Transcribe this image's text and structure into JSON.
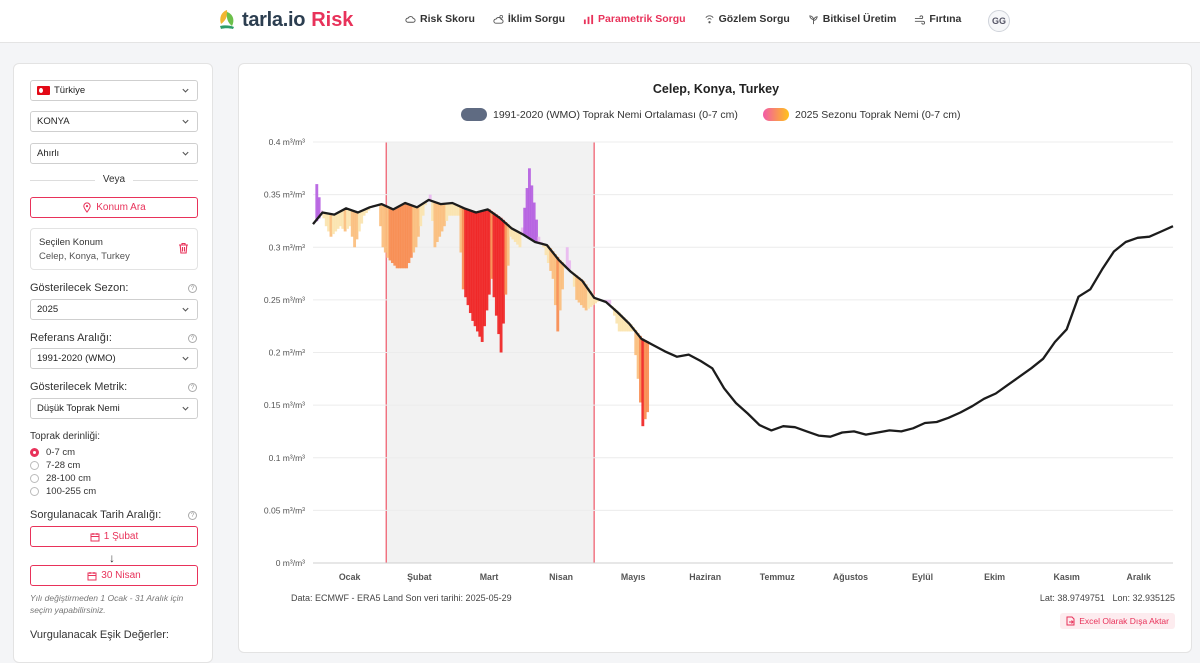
{
  "header": {
    "logo_main": "tarla.io",
    "logo_accent": "Risk",
    "nav": [
      {
        "label": "Risk Skoru",
        "icon": "cloud-icon",
        "active": false
      },
      {
        "label": "İklim Sorgu",
        "icon": "cloud-sun-icon",
        "active": false
      },
      {
        "label": "Parametrik Sorgu",
        "icon": "bar-chart-icon",
        "active": true
      },
      {
        "label": "Gözlem Sorgu",
        "icon": "sensor-icon",
        "active": false
      },
      {
        "label": "Bitkisel Üretim",
        "icon": "plant-icon",
        "active": false
      },
      {
        "label": "Fırtına",
        "icon": "wind-icon",
        "active": false
      }
    ],
    "user_initials": "GG"
  },
  "sidebar": {
    "country": "Türkiye",
    "province": "KONYA",
    "district": "Ahırlı",
    "or_label": "Veya",
    "location_search": "Konum Ara",
    "selected_location_title": "Seçilen Konum",
    "selected_location_value": "Celep, Konya, Turkey",
    "season_label": "Gösterilecek Sezon:",
    "season_value": "2025",
    "reference_label": "Referans Aralığı:",
    "reference_value": "1991-2020 (WMO)",
    "metric_label": "Gösterilecek Metrik:",
    "metric_value": "Düşük Toprak Nemi",
    "depth_label": "Toprak derinliği:",
    "depth_options": [
      "0-7 cm",
      "7-28 cm",
      "28-100 cm",
      "100-255 cm"
    ],
    "depth_selected": 0,
    "date_range_label": "Sorgulanacak Tarih Aralığı:",
    "date_start": "1 Şubat",
    "date_arrow": "↓",
    "date_end": "30 Nisan",
    "note": "Yılı değiştirmeden 1 Ocak - 31 Aralık için seçim yapabilirsiniz.",
    "threshold_label": "Vurgulanacak Eşik Değerler:"
  },
  "chart": {
    "footer_source": "Data: ECMWF - ERA5 Land  Son veri tarihi: 2025-05-29",
    "lat": "Lat: 38.9749751",
    "lon": "Lon: 32.935125",
    "export_label": "Excel Olarak Dışa Aktar"
  },
  "chart_data": {
    "type": "line",
    "title": "Celep, Konya, Turkey",
    "legend": [
      {
        "name": "1991-2020 (WMO) Toprak Nemi Ortalaması (0-7 cm)",
        "color": "#5f6b82"
      },
      {
        "name": "2025 Sezonu Toprak Nemi (0-7 cm)",
        "color": "#f4a63a"
      }
    ],
    "ylim": [
      0,
      0.4
    ],
    "yticks": [
      0,
      0.05,
      0.1,
      0.15,
      0.2,
      0.25,
      0.3,
      0.35,
      0.4
    ],
    "ytick_labels": [
      "0 m³/m³",
      "0.05 m³/m³",
      "0.1 m³/m³",
      "0.15 m³/m³",
      "0.2 m³/m³",
      "0.25 m³/m³",
      "0.3 m³/m³",
      "0.35 m³/m³",
      "0.4 m³/m³"
    ],
    "x_range_days": [
      1,
      365
    ],
    "months": [
      "Ocak",
      "Şubat",
      "Mart",
      "Nisan",
      "Mayıs",
      "Haziran",
      "Temmuz",
      "Ağustos",
      "Eylül",
      "Ekim",
      "Kasım",
      "Aralık"
    ],
    "highlight_range_days": [
      32,
      120
    ],
    "series": [
      {
        "name": "1991-2020 (WMO) Toprak Nemi Ortalaması (0-7 cm)",
        "x": [
          1,
          5,
          10,
          15,
          20,
          25,
          30,
          35,
          40,
          45,
          50,
          55,
          60,
          65,
          70,
          75,
          80,
          85,
          90,
          95,
          100,
          105,
          110,
          115,
          120,
          125,
          130,
          135,
          140,
          145,
          150,
          155,
          160,
          165,
          170,
          175,
          180,
          185,
          190,
          195,
          200,
          205,
          210,
          215,
          220,
          225,
          230,
          235,
          240,
          245,
          250,
          255,
          260,
          265,
          270,
          275,
          280,
          285,
          290,
          295,
          300,
          305,
          310,
          315,
          320,
          325,
          330,
          335,
          340,
          345,
          350,
          355,
          360,
          365
        ],
        "y": [
          0.322,
          0.333,
          0.331,
          0.337,
          0.333,
          0.338,
          0.341,
          0.336,
          0.342,
          0.338,
          0.345,
          0.341,
          0.342,
          0.337,
          0.333,
          0.336,
          0.328,
          0.318,
          0.312,
          0.305,
          0.302,
          0.288,
          0.277,
          0.268,
          0.252,
          0.248,
          0.238,
          0.227,
          0.213,
          0.207,
          0.201,
          0.196,
          0.198,
          0.192,
          0.185,
          0.166,
          0.152,
          0.142,
          0.131,
          0.126,
          0.13,
          0.129,
          0.125,
          0.121,
          0.12,
          0.124,
          0.125,
          0.122,
          0.124,
          0.126,
          0.125,
          0.128,
          0.133,
          0.134,
          0.138,
          0.143,
          0.149,
          0.156,
          0.161,
          0.169,
          0.177,
          0.185,
          0.194,
          0.21,
          0.222,
          0.253,
          0.26,
          0.279,
          0.296,
          0.305,
          0.309,
          0.31,
          0.315,
          0.32
        ]
      },
      {
        "name": "2025 Sezonu Toprak Nemi (0-7 cm)",
        "x": [
          2,
          4,
          6,
          8,
          12,
          14,
          16,
          18,
          22,
          26,
          28,
          30,
          32,
          36,
          40,
          44,
          48,
          50,
          52,
          56,
          58,
          62,
          64,
          68,
          72,
          76,
          80,
          84,
          88,
          92,
          96,
          98,
          102,
          104,
          108,
          112,
          116,
          122,
          126,
          130,
          136,
          140,
          143
        ],
        "y": [
          0.36,
          0.335,
          0.32,
          0.31,
          0.32,
          0.315,
          0.32,
          0.3,
          0.33,
          0.34,
          0.34,
          0.3,
          0.29,
          0.28,
          0.28,
          0.3,
          0.34,
          0.35,
          0.3,
          0.32,
          0.33,
          0.33,
          0.26,
          0.23,
          0.21,
          0.27,
          0.2,
          0.31,
          0.3,
          0.375,
          0.31,
          0.3,
          0.27,
          0.22,
          0.3,
          0.25,
          0.24,
          0.25,
          0.25,
          0.22,
          0.22,
          0.13,
          0.15
        ]
      }
    ]
  }
}
